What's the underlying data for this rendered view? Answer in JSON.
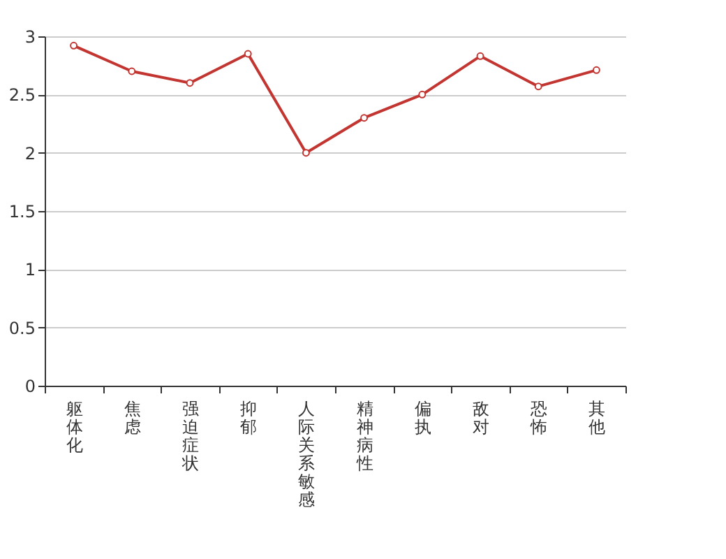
{
  "chart_data": {
    "type": "line",
    "categories": [
      "躯体化",
      "焦虑",
      "强迫症状",
      "抑郁",
      "人际关系敏感",
      "精神病性",
      "偏执",
      "敌对",
      "恐怖",
      "其他"
    ],
    "series": [
      {
        "color": "#c23531",
        "values": [
          2.92,
          2.7,
          2.6,
          2.85,
          2.0,
          2.3,
          2.5,
          2.83,
          2.57,
          2.71
        ]
      }
    ],
    "ylim": [
      0,
      3
    ],
    "yticks": [
      0,
      0.5,
      1,
      1.5,
      2,
      2.5,
      3
    ],
    "grid": "y",
    "marker": "circle",
    "line_style": "solid"
  }
}
